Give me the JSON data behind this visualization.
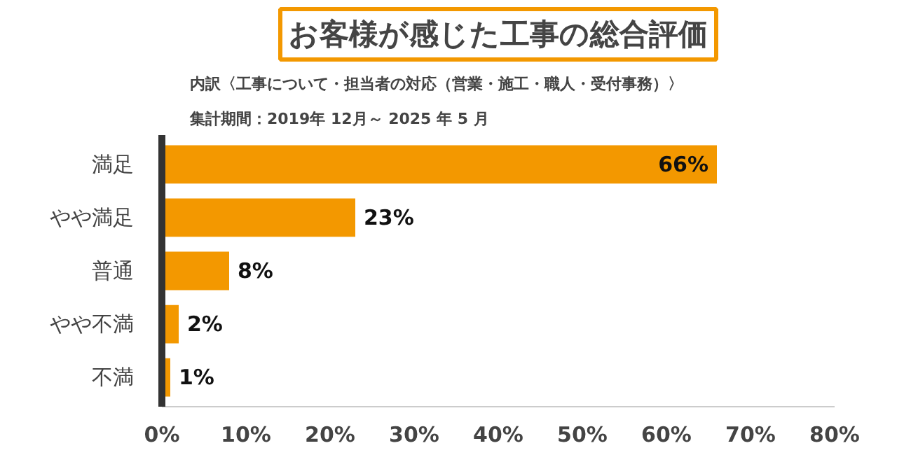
{
  "chart_data": {
    "type": "bar",
    "orientation": "horizontal",
    "title": "お客様が感じた工事の総合評価",
    "subtitle": "内訳〈工事について・担当者の対応（営業・施工・職人・受付事務）〉",
    "annotations": [
      "集計期間：2019年 12月～ 2025 年 5 月"
    ],
    "categories": [
      "満足",
      "やや満足",
      "普通",
      "やや不満",
      "不満"
    ],
    "values": [
      66,
      23,
      8,
      2,
      1
    ],
    "value_labels": [
      "66%",
      "23%",
      "8%",
      "2%",
      "1%"
    ],
    "color": "#f39800",
    "xlim": [
      0,
      80
    ],
    "xticks": [
      {
        "value": 0,
        "label": "0%"
      },
      {
        "value": 10,
        "label": "10%"
      },
      {
        "value": 20,
        "label": "20%"
      },
      {
        "value": 30,
        "label": "30%"
      },
      {
        "value": 40,
        "label": "40%"
      },
      {
        "value": 50,
        "label": "50%"
      },
      {
        "value": 60,
        "label": "60%"
      },
      {
        "value": 70,
        "label": "70%"
      },
      {
        "value": 80,
        "label": "80%"
      }
    ],
    "grid": false
  }
}
